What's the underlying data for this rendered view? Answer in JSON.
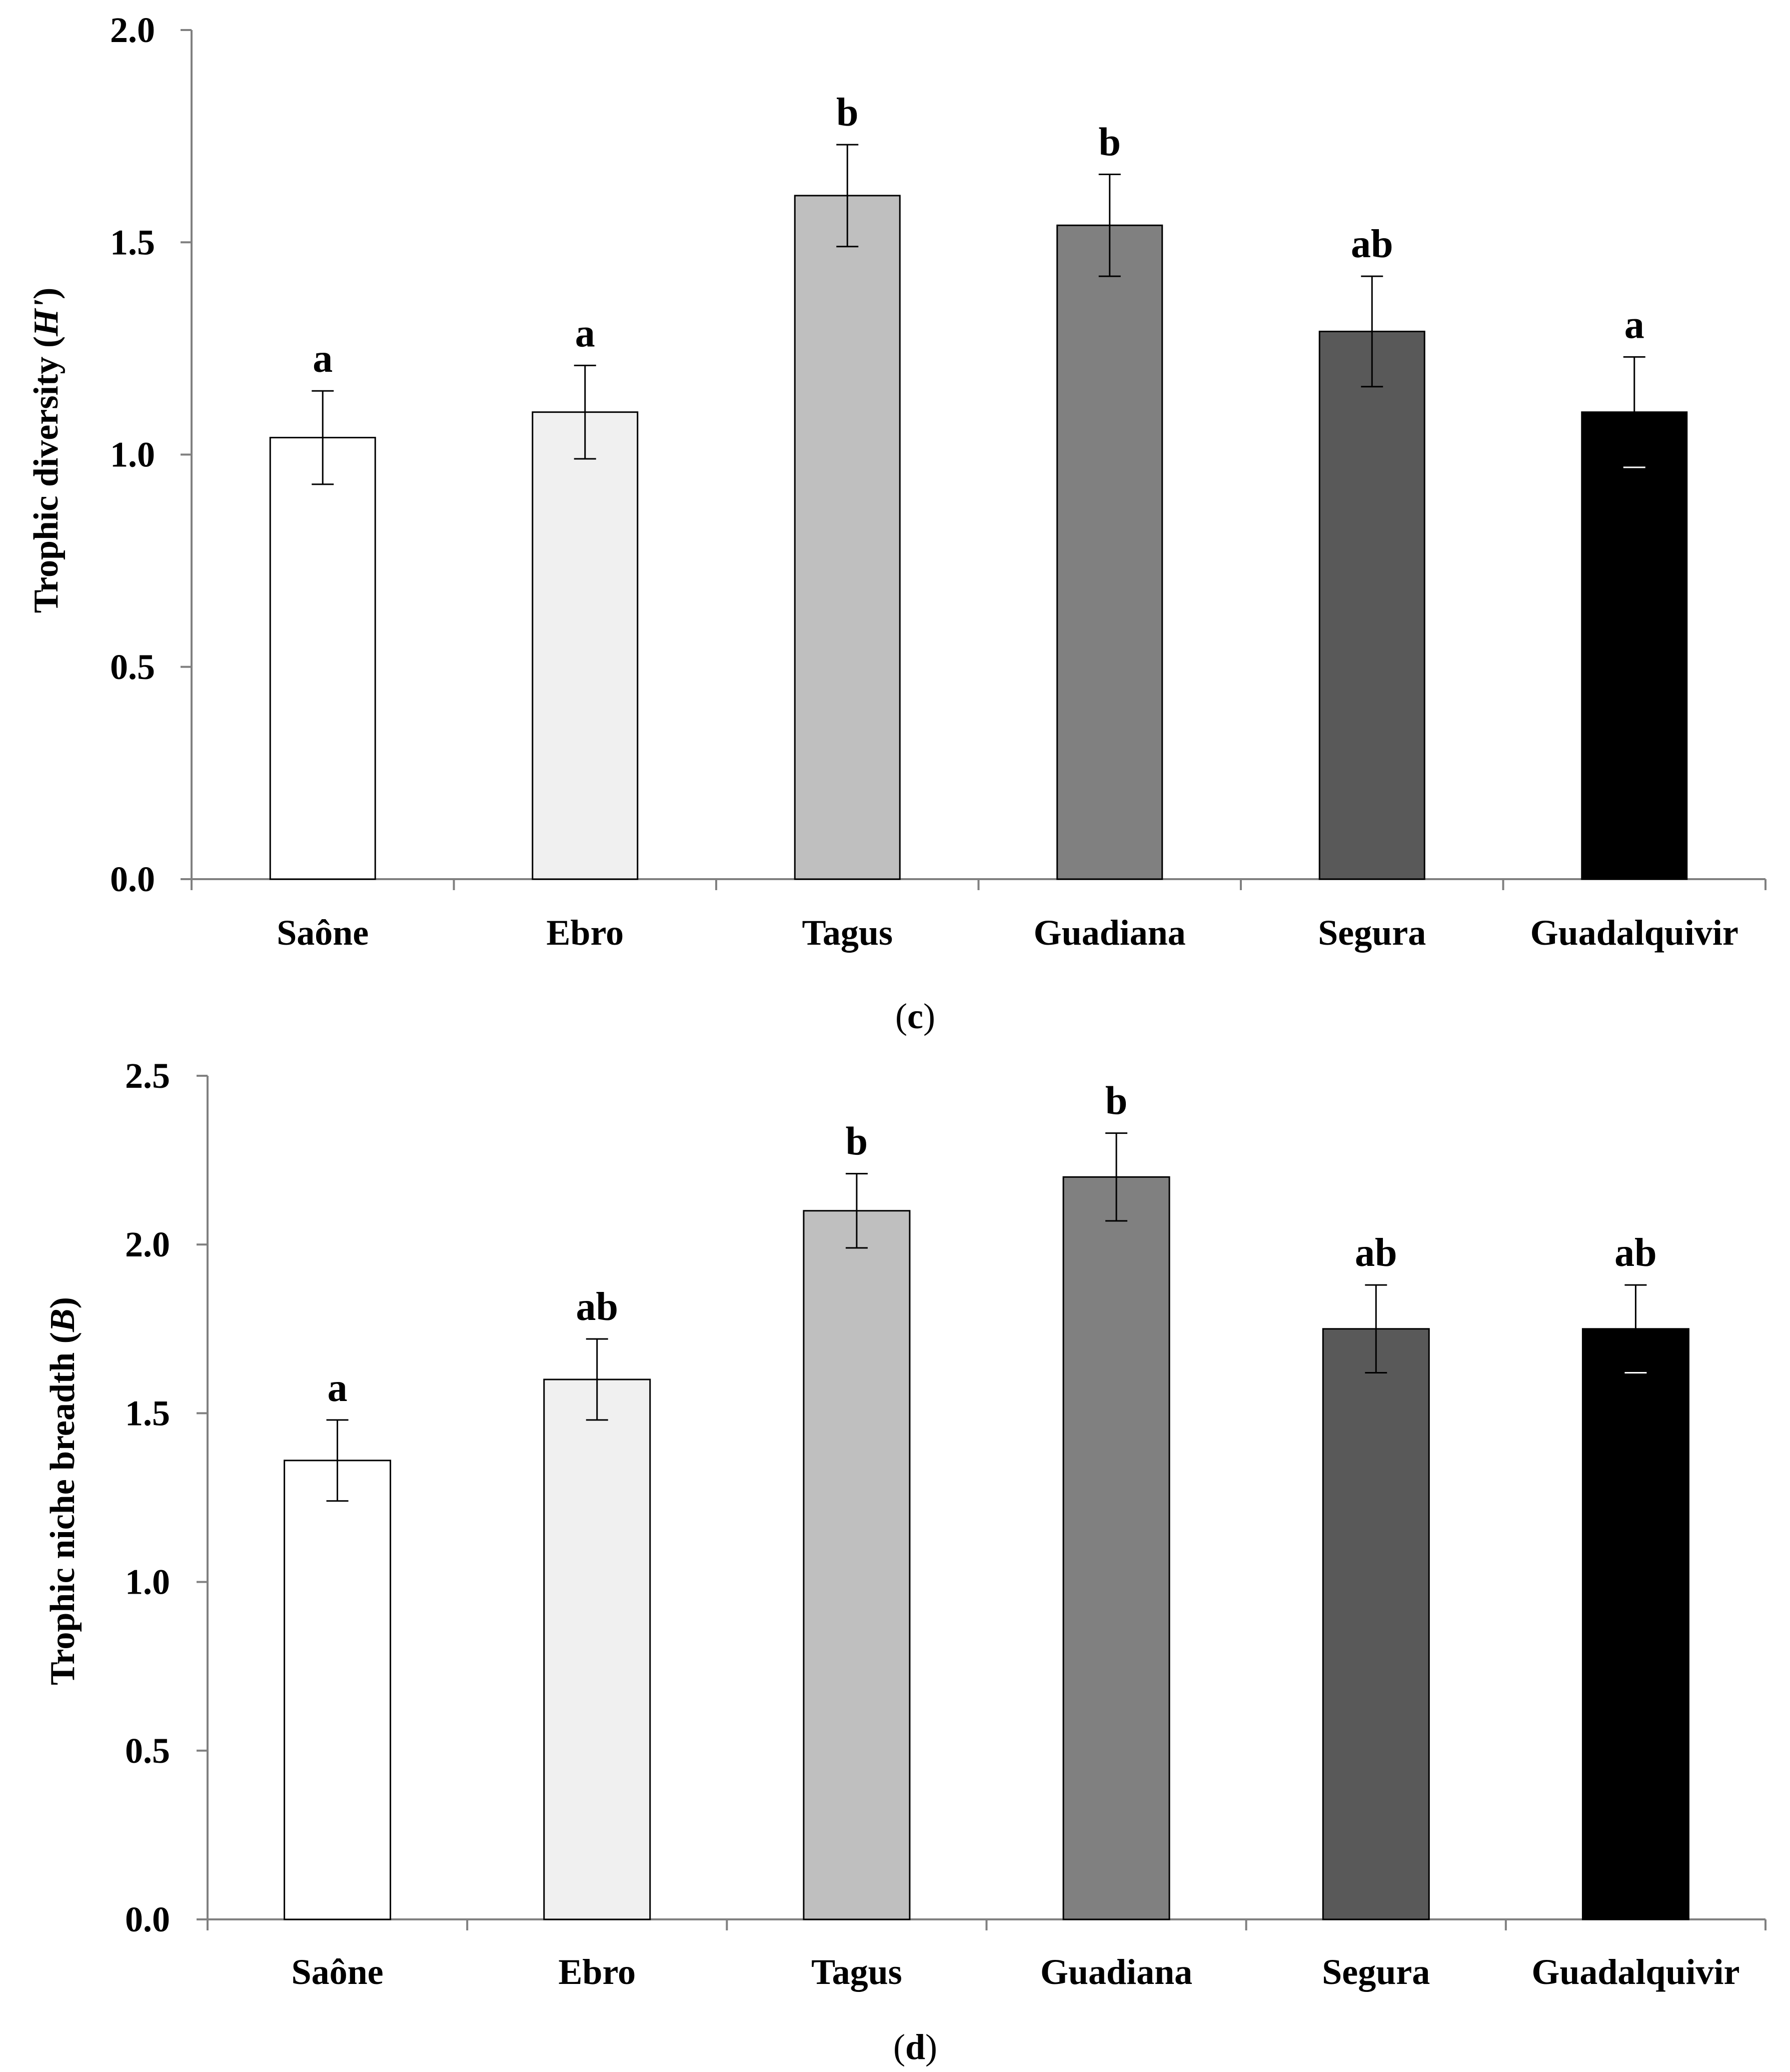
{
  "chart_data": [
    {
      "type": "bar",
      "panel_label": "c",
      "ylabel_prefix": "Trophic diversity (",
      "ylabel_symbol": "H'",
      "ylabel_suffix": ")",
      "ylim": [
        0,
        2.0
      ],
      "yticks": [
        "0.0",
        "0.5",
        "1.0",
        "1.5",
        "2.0"
      ],
      "ytick_values": [
        0,
        0.5,
        1.0,
        1.5,
        2.0
      ],
      "categories": [
        "Saône",
        "Ebro",
        "Tagus",
        "Guadiana",
        "Segura",
        "Guadalquivir"
      ],
      "values": [
        1.04,
        1.1,
        1.61,
        1.54,
        1.29,
        1.1
      ],
      "errors": [
        0.11,
        0.11,
        0.12,
        0.12,
        0.13,
        0.13
      ],
      "significance": [
        "a",
        "a",
        "b",
        "b",
        "ab",
        "a"
      ],
      "bar_colors": [
        "#ffffff",
        "#f0f0f0",
        "#bfbfbf",
        "#808080",
        "#595959",
        "#000000"
      ]
    },
    {
      "type": "bar",
      "panel_label": "d",
      "ylabel_prefix": "Trophic niche breadth (",
      "ylabel_symbol": "B",
      "ylabel_suffix": ")",
      "ylim": [
        0,
        2.5
      ],
      "yticks": [
        "0.0",
        "0.5",
        "1.0",
        "1.5",
        "2.0",
        "2.5"
      ],
      "ytick_values": [
        0,
        0.5,
        1.0,
        1.5,
        2.0,
        2.5
      ],
      "categories": [
        "Saône",
        "Ebro",
        "Tagus",
        "Guadiana",
        "Segura",
        "Guadalquivir"
      ],
      "values": [
        1.36,
        1.6,
        2.1,
        2.2,
        1.75,
        1.75
      ],
      "errors": [
        0.12,
        0.12,
        0.11,
        0.13,
        0.13,
        0.13
      ],
      "significance": [
        "a",
        "ab",
        "b",
        "b",
        "ab",
        "ab"
      ],
      "bar_colors": [
        "#ffffff",
        "#f0f0f0",
        "#bfbfbf",
        "#808080",
        "#595959",
        "#000000"
      ]
    }
  ]
}
